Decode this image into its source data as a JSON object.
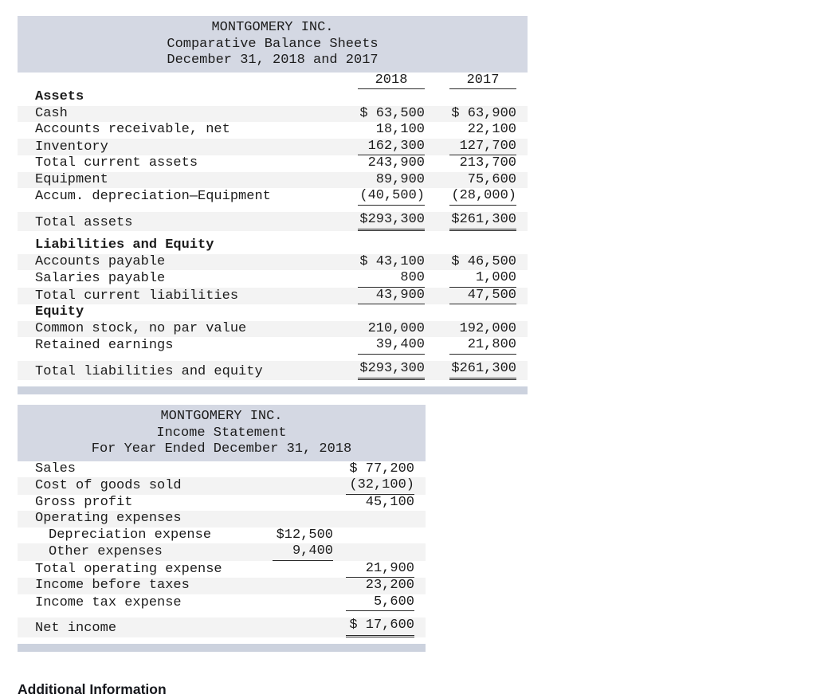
{
  "balance_sheet": {
    "title_lines": [
      "MONTGOMERY INC.",
      "Comparative Balance Sheets",
      "December 31, 2018 and 2017"
    ],
    "col_headers": [
      "2018",
      "2017"
    ],
    "rows": [
      {
        "label": "Assets",
        "bold": true
      },
      {
        "label": "Cash",
        "c1": "$ 63,500",
        "c2": "$ 63,900"
      },
      {
        "label": "Accounts receivable, net",
        "c1": "18,100",
        "c2": "22,100"
      },
      {
        "label": "Inventory",
        "c1": "162,300",
        "c2": "127,700",
        "rule": "single"
      },
      {
        "label": "Total current assets",
        "c1": "243,900",
        "c2": "213,700"
      },
      {
        "label": "Equipment",
        "c1": "89,900",
        "c2": "75,600"
      },
      {
        "label": "Accum. depreciation—Equipment",
        "c1": "(40,500)",
        "c2": "(28,000)",
        "rule": "single"
      },
      {
        "label": "Total assets",
        "c1": "$293,300",
        "c2": "$261,300",
        "rule": "double",
        "gap_before": true
      },
      {
        "label": "Liabilities and Equity",
        "bold": true,
        "gap_before": true
      },
      {
        "label": "Accounts payable",
        "c1": "$ 43,100",
        "c2": "$ 46,500"
      },
      {
        "label": "Salaries payable",
        "c1": "800",
        "c2": "1,000",
        "rule": "single"
      },
      {
        "label": "Total current liabilities",
        "c1": "43,900",
        "c2": "47,500",
        "rule": "single"
      },
      {
        "label": "Equity",
        "bold": true
      },
      {
        "label": "Common stock, no par value",
        "c1": "210,000",
        "c2": "192,000"
      },
      {
        "label": "Retained earnings",
        "c1": "39,400",
        "c2": "21,800",
        "rule": "single"
      },
      {
        "label": "Total liabilities and equity",
        "c1": "$293,300",
        "c2": "$261,300",
        "rule": "double",
        "gap_before": true
      }
    ]
  },
  "income_statement": {
    "title_lines": [
      "MONTGOMERY INC.",
      "Income Statement",
      "For Year Ended December 31, 2018"
    ],
    "rows": [
      {
        "label": "Sales",
        "outer": "$ 77,200"
      },
      {
        "label": "Cost of goods sold",
        "outer": "(32,100)",
        "rule": "single"
      },
      {
        "label": "Gross profit",
        "outer": "45,100"
      },
      {
        "label": "Operating expenses"
      },
      {
        "label": "Depreciation expense",
        "indent": true,
        "inner": "$12,500"
      },
      {
        "label": "Other expenses",
        "indent": true,
        "inner": "9,400",
        "inner_rule": "single"
      },
      {
        "label": "Total operating expense",
        "outer": "21,900",
        "rule": "single"
      },
      {
        "label": "Income before taxes",
        "outer": "23,200"
      },
      {
        "label": "Income tax expense",
        "outer": "5,600",
        "rule": "single"
      },
      {
        "label": "Net income",
        "outer": "$ 17,600",
        "rule": "double",
        "gap_before": true
      }
    ]
  },
  "additional_information": {
    "heading": "Additional Information"
  },
  "colors": {
    "header_bg": "#d4d8e3",
    "stripe": "#f3f3f3",
    "footer_band": "#ccd2de",
    "text": "#1c1c1c"
  }
}
